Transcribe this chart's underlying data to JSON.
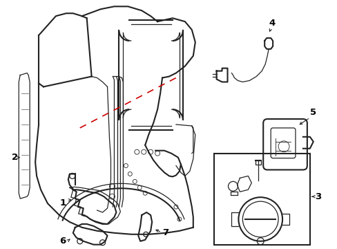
{
  "bg_color": "#ffffff",
  "line_color": "#222222",
  "red_dash_color": "#cc0000",
  "label_color": "#000000",
  "figsize": [
    4.89,
    3.6
  ],
  "dpi": 100
}
